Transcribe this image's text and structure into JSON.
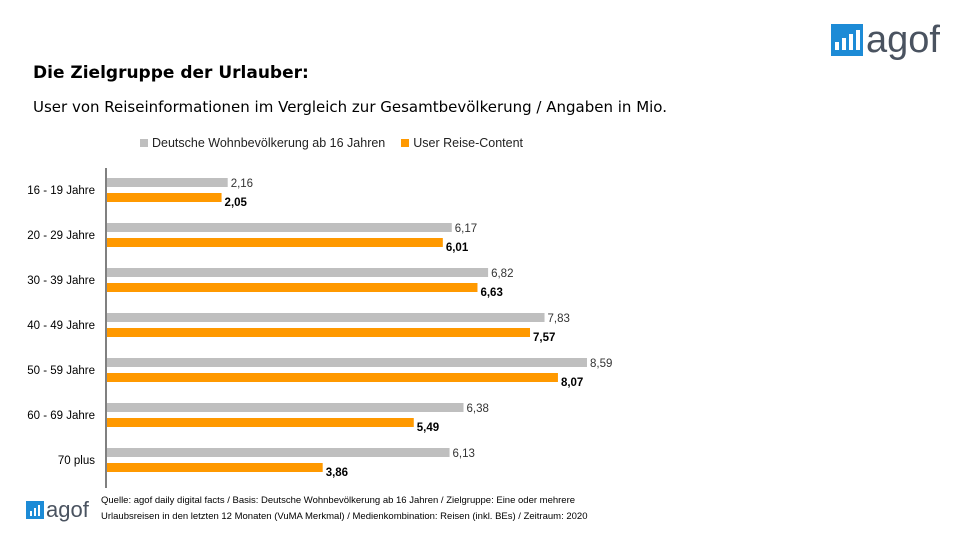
{
  "header": {
    "title": "Die Zielgruppe der Urlauber:",
    "subtitle": "User von Reiseinformationen im Vergleich zur Gesamtbevölkerung / Angaben in Mio."
  },
  "logo": {
    "text": "agof",
    "color": "#1d8bd6"
  },
  "chart_data": {
    "type": "bar",
    "orientation": "horizontal",
    "categories": [
      "16 - 19 Jahre",
      "20 - 29 Jahre",
      "30 - 39 Jahre",
      "40 - 49 Jahre",
      "50 - 59 Jahre",
      "60 - 69 Jahre",
      "70 plus"
    ],
    "series": [
      {
        "name": "Deutsche Wohnbevölkerung ab 16 Jahren",
        "color": "#bfbfbf",
        "values": [
          2.16,
          6.17,
          6.82,
          7.83,
          8.59,
          6.38,
          6.13
        ],
        "labels": [
          "2,16",
          "6,17",
          "6,82",
          "7,83",
          "8,59",
          "6,38",
          "6,13"
        ]
      },
      {
        "name": "User Reise-Content",
        "color": "#ff9900",
        "values": [
          2.05,
          6.01,
          6.63,
          7.57,
          8.07,
          5.49,
          3.86
        ],
        "labels": [
          "2,05",
          "6,01",
          "6,63",
          "7,57",
          "8,07",
          "5,49",
          "3,86"
        ]
      }
    ],
    "legend": "top",
    "grid": false
  },
  "footer": {
    "source_line1": "Quelle: agof daily digital facts / Basis: Deutsche Wohnbevölkerung ab 16 Jahren / Zielgruppe: Eine oder mehrere",
    "source_line2": "Urlaubsreisen in den letzten 12 Monaten (VuMA Merkmal) / Medienkombination: Reisen (inkl. BEs) / Zeitraum: 2020"
  }
}
